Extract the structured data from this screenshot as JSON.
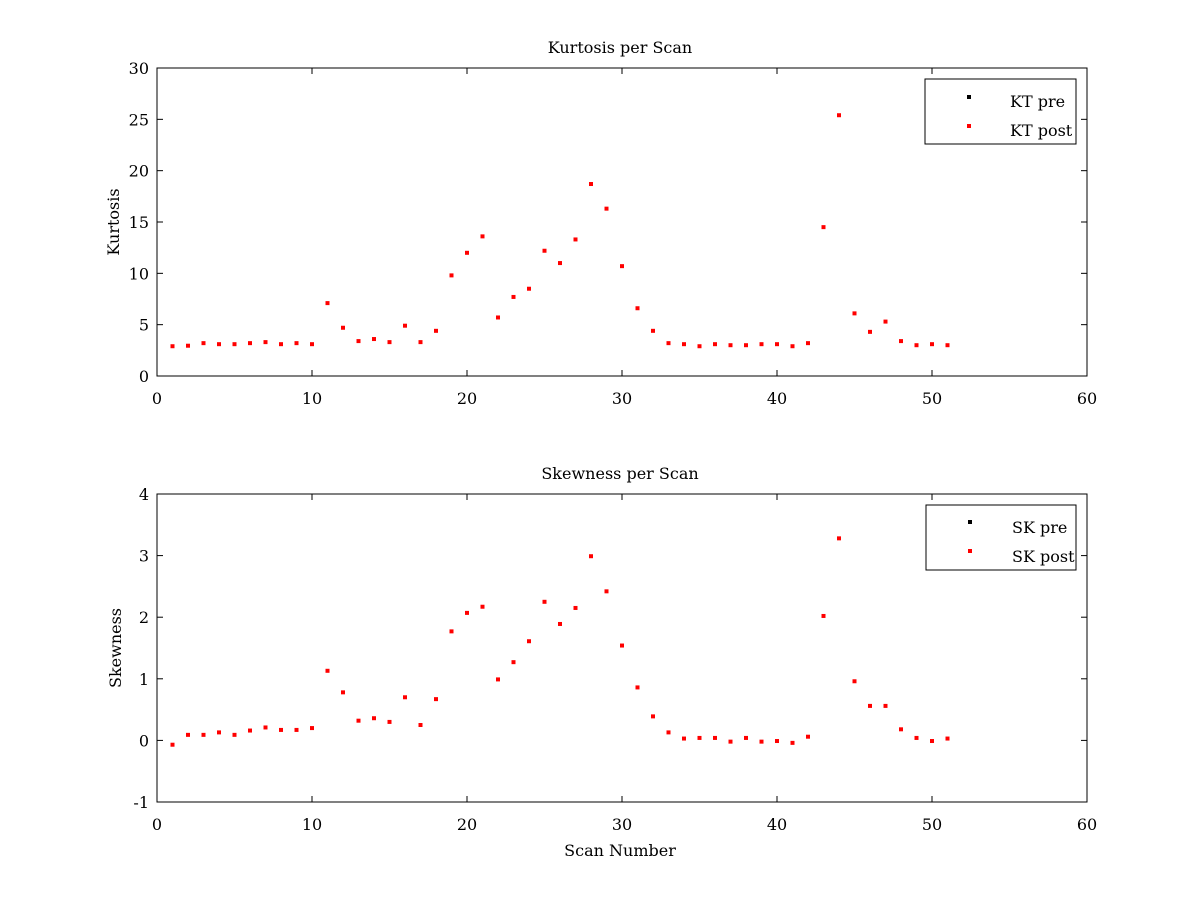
{
  "colors": {
    "pre": "#000000",
    "post": "#ff0000",
    "axes": "#000000",
    "background": "#ffffff"
  },
  "chart_data": [
    {
      "type": "scatter",
      "title": "Kurtosis per Scan",
      "xlabel": "",
      "ylabel": "Kurtosis",
      "xlim": [
        0,
        60
      ],
      "ylim": [
        0,
        30
      ],
      "xticks": [
        0,
        10,
        20,
        30,
        40,
        50,
        60
      ],
      "yticks": [
        0,
        5,
        10,
        15,
        20,
        25,
        30
      ],
      "grid": false,
      "legend_position": "top-right",
      "series": [
        {
          "name": "KT pre",
          "color": "#000000",
          "x": [],
          "y": []
        },
        {
          "name": "KT post",
          "color": "#ff0000",
          "x": [
            1,
            2,
            3,
            4,
            5,
            6,
            7,
            8,
            9,
            10,
            11,
            12,
            13,
            14,
            15,
            16,
            17,
            18,
            19,
            20,
            21,
            22,
            23,
            24,
            25,
            26,
            27,
            28,
            29,
            30,
            31,
            32,
            33,
            34,
            35,
            36,
            37,
            38,
            39,
            40,
            41,
            42,
            43,
            44,
            45,
            46,
            47,
            48,
            49,
            50,
            51
          ],
          "y": [
            2.9,
            2.95,
            3.2,
            3.1,
            3.1,
            3.2,
            3.3,
            3.1,
            3.2,
            3.1,
            7.1,
            4.7,
            3.4,
            3.6,
            3.3,
            4.9,
            3.3,
            4.4,
            9.8,
            12.0,
            13.6,
            5.7,
            7.7,
            8.5,
            12.2,
            11.0,
            13.3,
            18.7,
            16.3,
            10.7,
            6.6,
            4.4,
            3.2,
            3.1,
            2.9,
            3.1,
            3.0,
            3.0,
            3.1,
            3.1,
            2.9,
            3.2,
            14.5,
            25.4,
            6.1,
            4.3,
            5.3,
            3.4,
            3.0,
            3.1,
            3.0
          ]
        }
      ]
    },
    {
      "type": "scatter",
      "title": "Skewness per Scan",
      "xlabel": "Scan Number",
      "ylabel": "Skewness",
      "xlim": [
        0,
        60
      ],
      "ylim": [
        -1,
        4
      ],
      "xticks": [
        0,
        10,
        20,
        30,
        40,
        50,
        60
      ],
      "yticks": [
        -1,
        0,
        1,
        2,
        3,
        4
      ],
      "grid": false,
      "legend_position": "top-right",
      "series": [
        {
          "name": "SK pre",
          "color": "#000000",
          "x": [],
          "y": []
        },
        {
          "name": "SK post",
          "color": "#ff0000",
          "x": [
            1,
            2,
            3,
            4,
            5,
            6,
            7,
            8,
            9,
            10,
            11,
            12,
            13,
            14,
            15,
            16,
            17,
            18,
            19,
            20,
            21,
            22,
            23,
            24,
            25,
            26,
            27,
            28,
            29,
            30,
            31,
            32,
            33,
            34,
            35,
            36,
            37,
            38,
            39,
            40,
            41,
            42,
            43,
            44,
            45,
            46,
            47,
            48,
            49,
            50,
            51
          ],
          "y": [
            -0.07,
            0.09,
            0.09,
            0.13,
            0.09,
            0.16,
            0.21,
            0.17,
            0.17,
            0.2,
            1.13,
            0.78,
            0.32,
            0.36,
            0.3,
            0.7,
            0.25,
            0.67,
            1.77,
            2.07,
            2.17,
            0.99,
            1.27,
            1.61,
            2.25,
            1.89,
            2.15,
            2.99,
            2.42,
            1.54,
            0.86,
            0.39,
            0.13,
            0.03,
            0.04,
            0.04,
            -0.02,
            0.04,
            -0.02,
            -0.01,
            -0.04,
            0.06,
            2.02,
            3.28,
            0.96,
            0.56,
            0.56,
            0.18,
            0.04,
            -0.01,
            0.03
          ]
        }
      ]
    }
  ]
}
